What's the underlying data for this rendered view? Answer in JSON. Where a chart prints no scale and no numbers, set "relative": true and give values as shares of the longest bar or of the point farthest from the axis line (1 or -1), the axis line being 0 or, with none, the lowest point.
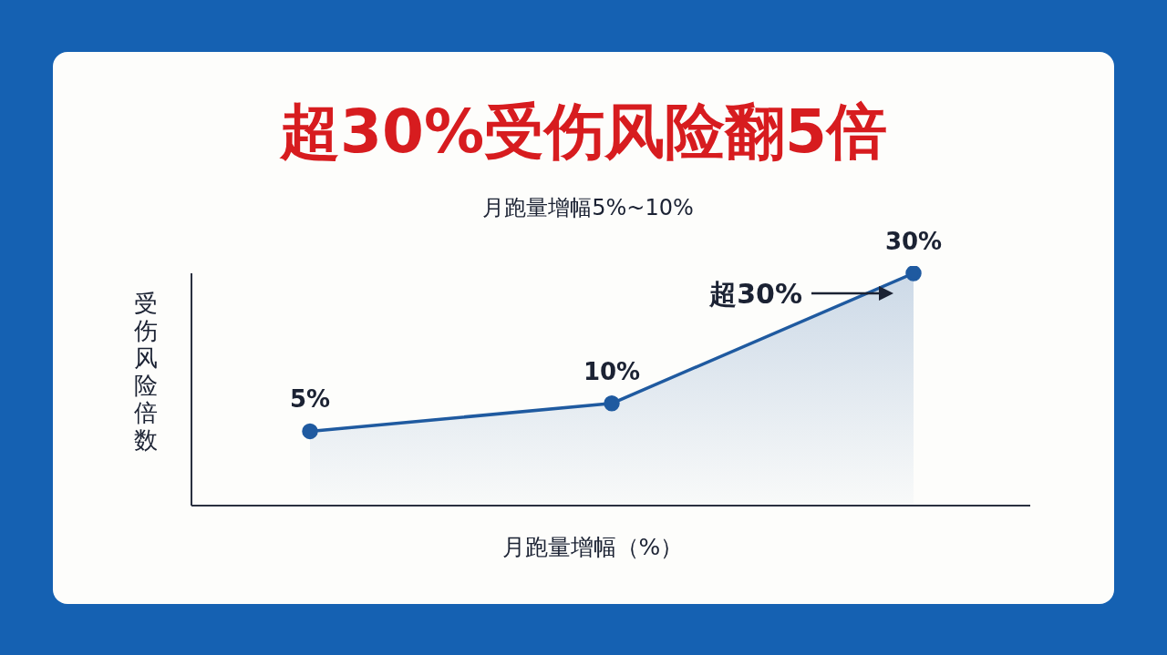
{
  "chart_data": {
    "type": "area",
    "title": "超30%受伤风险翻5倍",
    "subtitle": "月跑量增幅5%~10%",
    "xlabel": "月跑量增幅（%）",
    "ylabel": "受伤风险倍数",
    "relative": true,
    "categories": [
      "5%",
      "10%",
      "30%"
    ],
    "series": [
      {
        "color": "#1f5aa0",
        "values": [
          0.32,
          0.44,
          1
        ]
      }
    ],
    "annotations": [
      "超30%"
    ],
    "marker": "circle",
    "grid": false,
    "legend": false
  }
}
